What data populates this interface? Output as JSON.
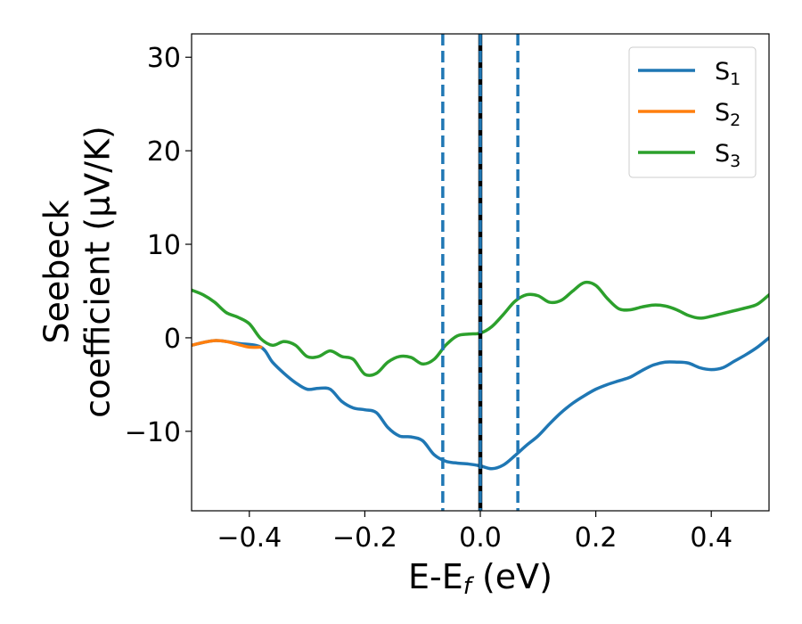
{
  "chart_data": {
    "type": "line",
    "xlabel": {
      "main": "E-E",
      "sub": "f",
      "rest": " (eV)"
    },
    "ylabel": {
      "line1": "Seebeck",
      "line2": "coefficient  (μV/K)"
    },
    "xlim": [
      -0.5,
      0.5
    ],
    "ylim": [
      -18.5,
      32.5
    ],
    "xticks": [
      -0.4,
      -0.2,
      0.0,
      0.2,
      0.4
    ],
    "xtick_labels": [
      "−0.4",
      "−0.2",
      "0.0",
      "0.2",
      "0.4"
    ],
    "yticks": [
      -10,
      0,
      10,
      20,
      30
    ],
    "ytick_labels": [
      "−10",
      "0",
      "10",
      "20",
      "30"
    ],
    "grid": false,
    "legend_position": "top-right",
    "vlines": [
      {
        "x": -0.065,
        "style": "dashed",
        "color": "#1f77b4"
      },
      {
        "x": 0.0,
        "style": "solid",
        "color": "#000000"
      },
      {
        "x": 0.0,
        "style": "dashed",
        "color": "#1f77b4"
      },
      {
        "x": 0.065,
        "style": "dashed",
        "color": "#1f77b4"
      }
    ],
    "series": [
      {
        "name": "S",
        "sub": "1",
        "color": "#1f77b4",
        "x": [
          -0.5,
          -0.46,
          -0.42,
          -0.38,
          -0.36,
          -0.34,
          -0.32,
          -0.3,
          -0.28,
          -0.26,
          -0.24,
          -0.22,
          -0.2,
          -0.18,
          -0.16,
          -0.14,
          -0.12,
          -0.1,
          -0.08,
          -0.06,
          -0.04,
          -0.02,
          0.0,
          0.02,
          0.04,
          0.06,
          0.08,
          0.1,
          0.12,
          0.14,
          0.16,
          0.18,
          0.2,
          0.22,
          0.24,
          0.26,
          0.28,
          0.3,
          0.32,
          0.34,
          0.36,
          0.38,
          0.4,
          0.42,
          0.44,
          0.46,
          0.48,
          0.5
        ],
        "y": [
          -0.8,
          -0.3,
          -0.6,
          -1.0,
          -2.6,
          -3.8,
          -4.8,
          -5.5,
          -5.4,
          -5.5,
          -6.8,
          -7.5,
          -7.7,
          -8.0,
          -9.6,
          -10.5,
          -10.6,
          -11.0,
          -12.5,
          -13.2,
          -13.4,
          -13.5,
          -13.7,
          -14.0,
          -13.6,
          -12.6,
          -11.5,
          -10.5,
          -9.2,
          -8.0,
          -7.0,
          -6.2,
          -5.5,
          -5.0,
          -4.6,
          -4.2,
          -3.5,
          -2.9,
          -2.6,
          -2.6,
          -2.7,
          -3.2,
          -3.4,
          -3.2,
          -2.5,
          -1.8,
          -1.0,
          0.0
        ]
      },
      {
        "name": "S",
        "sub": "2",
        "color": "#ff7f0e",
        "x": [
          -0.5,
          -0.48,
          -0.46,
          -0.44,
          -0.42,
          -0.4,
          -0.38
        ],
        "y": [
          -0.8,
          -0.5,
          -0.3,
          -0.4,
          -0.7,
          -1.0,
          -1.0
        ]
      },
      {
        "name": "S",
        "sub": "3",
        "color": "#2ca02c",
        "x": [
          -0.5,
          -0.48,
          -0.46,
          -0.44,
          -0.42,
          -0.4,
          -0.38,
          -0.36,
          -0.34,
          -0.32,
          -0.3,
          -0.28,
          -0.26,
          -0.24,
          -0.22,
          -0.2,
          -0.18,
          -0.16,
          -0.14,
          -0.12,
          -0.1,
          -0.08,
          -0.06,
          -0.04,
          -0.02,
          0.0,
          0.02,
          0.04,
          0.06,
          0.08,
          0.1,
          0.12,
          0.14,
          0.16,
          0.18,
          0.2,
          0.22,
          0.24,
          0.26,
          0.28,
          0.3,
          0.32,
          0.34,
          0.36,
          0.38,
          0.4,
          0.42,
          0.44,
          0.46,
          0.48,
          0.5
        ],
        "y": [
          5.1,
          4.6,
          3.8,
          2.7,
          2.2,
          1.5,
          -0.1,
          -0.8,
          -0.4,
          -0.8,
          -2.0,
          -2.0,
          -1.4,
          -2.0,
          -2.3,
          -3.9,
          -3.8,
          -2.6,
          -2.0,
          -2.1,
          -2.8,
          -2.3,
          -0.8,
          0.2,
          0.4,
          0.5,
          1.2,
          2.5,
          3.9,
          4.6,
          4.5,
          3.8,
          4.0,
          5.0,
          5.9,
          5.6,
          4.2,
          3.1,
          3.0,
          3.3,
          3.5,
          3.4,
          3.0,
          2.4,
          2.1,
          2.3,
          2.6,
          2.9,
          3.2,
          3.6,
          4.6
        ]
      }
    ]
  }
}
